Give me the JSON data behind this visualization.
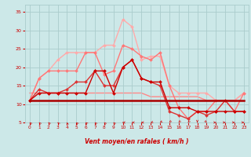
{
  "xlabel": "Vent moyen/en rafales ( km/h )",
  "background_color": "#cce8e8",
  "grid_color": "#aacccc",
  "x": [
    0,
    1,
    2,
    3,
    4,
    5,
    6,
    7,
    8,
    9,
    10,
    11,
    12,
    13,
    14,
    15,
    16,
    17,
    18,
    19,
    20,
    21,
    22,
    23
  ],
  "series": [
    {
      "y": [
        11,
        17,
        19,
        22,
        24,
        24,
        24,
        24,
        26,
        26,
        33,
        31,
        22,
        23,
        23,
        15,
        13,
        13,
        13,
        13,
        11,
        11,
        11,
        13
      ],
      "color": "#ffaaaa",
      "lw": 1.0,
      "marker": "D",
      "ms": 2.0,
      "zorder": 2
    },
    {
      "y": [
        11,
        17,
        19,
        19,
        19,
        19,
        24,
        24,
        18,
        19,
        26,
        25,
        23,
        22,
        24,
        15,
        9,
        6,
        8,
        8,
        11,
        11,
        8,
        13
      ],
      "color": "#ff7777",
      "lw": 1.0,
      "marker": "D",
      "ms": 2.0,
      "zorder": 3
    },
    {
      "y": [
        11,
        14,
        13,
        13,
        14,
        16,
        16,
        19,
        15,
        15,
        20,
        22,
        17,
        16,
        15,
        8,
        7,
        6,
        8,
        7,
        8,
        11,
        8,
        8
      ],
      "color": "#dd3333",
      "lw": 1.0,
      "marker": "D",
      "ms": 2.0,
      "zorder": 4
    },
    {
      "y": [
        11,
        13,
        13,
        13,
        13,
        13,
        13,
        19,
        19,
        13,
        20,
        22,
        17,
        16,
        16,
        9,
        9,
        9,
        8,
        8,
        8,
        8,
        8,
        8
      ],
      "color": "#cc0000",
      "lw": 1.0,
      "marker": "D",
      "ms": 2.0,
      "zorder": 5
    },
    {
      "y": [
        11,
        11,
        11,
        11,
        11,
        11,
        11,
        11,
        11,
        11,
        11,
        11,
        11,
        11,
        11,
        11,
        11,
        11,
        11,
        11,
        11,
        11,
        11,
        11
      ],
      "color": "#aa0000",
      "lw": 1.8,
      "marker": null,
      "ms": 0,
      "zorder": 6
    },
    {
      "y": [
        13,
        13,
        13,
        13,
        13,
        13,
        13,
        13,
        13,
        13,
        13,
        13,
        13,
        12,
        12,
        12,
        12,
        12,
        12,
        11,
        11,
        11,
        11,
        13
      ],
      "color": "#ff8888",
      "lw": 1.0,
      "marker": null,
      "ms": 0,
      "zorder": 1
    }
  ],
  "wind_angles": [
    225,
    225,
    225,
    225,
    200,
    225,
    230,
    225,
    225,
    225,
    270,
    270,
    270,
    280,
    300,
    315,
    315,
    315,
    0,
    45,
    90,
    90,
    90,
    90
  ],
  "xlim": [
    -0.5,
    23.5
  ],
  "ylim": [
    5,
    37
  ],
  "yticks": [
    5,
    10,
    15,
    20,
    25,
    30,
    35
  ],
  "xticks": [
    0,
    1,
    2,
    3,
    4,
    5,
    6,
    7,
    8,
    9,
    10,
    11,
    12,
    13,
    14,
    15,
    16,
    17,
    18,
    19,
    20,
    21,
    22,
    23
  ],
  "tick_color": "#cc0000",
  "label_color": "#cc0000",
  "arrow_color": "#cc0000"
}
